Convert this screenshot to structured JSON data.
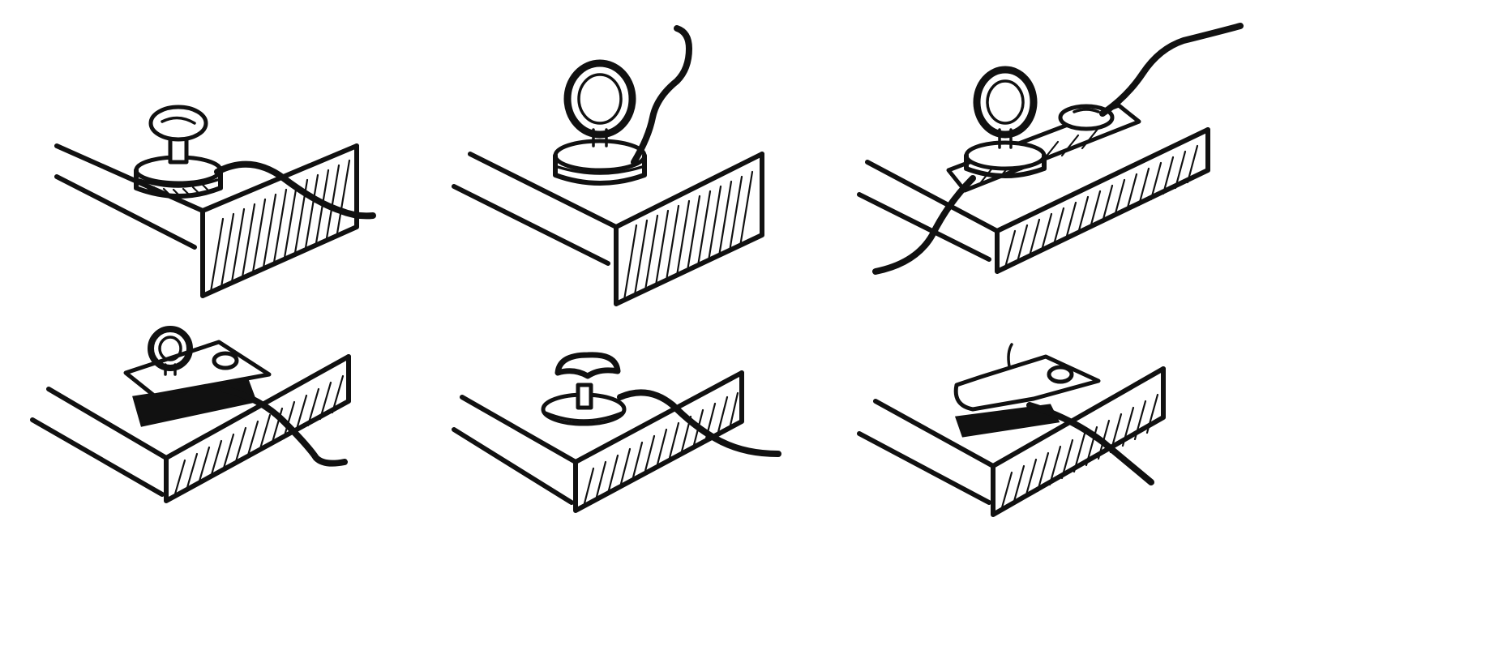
{
  "figure": {
    "background": "#ffffff",
    "ink_color": "#111111",
    "panels": [
      {
        "id": "mushroom-screw-washer-coil"
      },
      {
        "id": "eye-screw-washer-coil"
      },
      {
        "id": "eye-screw-metal-strip"
      },
      {
        "id": "eye-screw-metal-tab"
      },
      {
        "id": "wing-screw-washer"
      },
      {
        "id": "metal-tab-clip"
      }
    ]
  }
}
